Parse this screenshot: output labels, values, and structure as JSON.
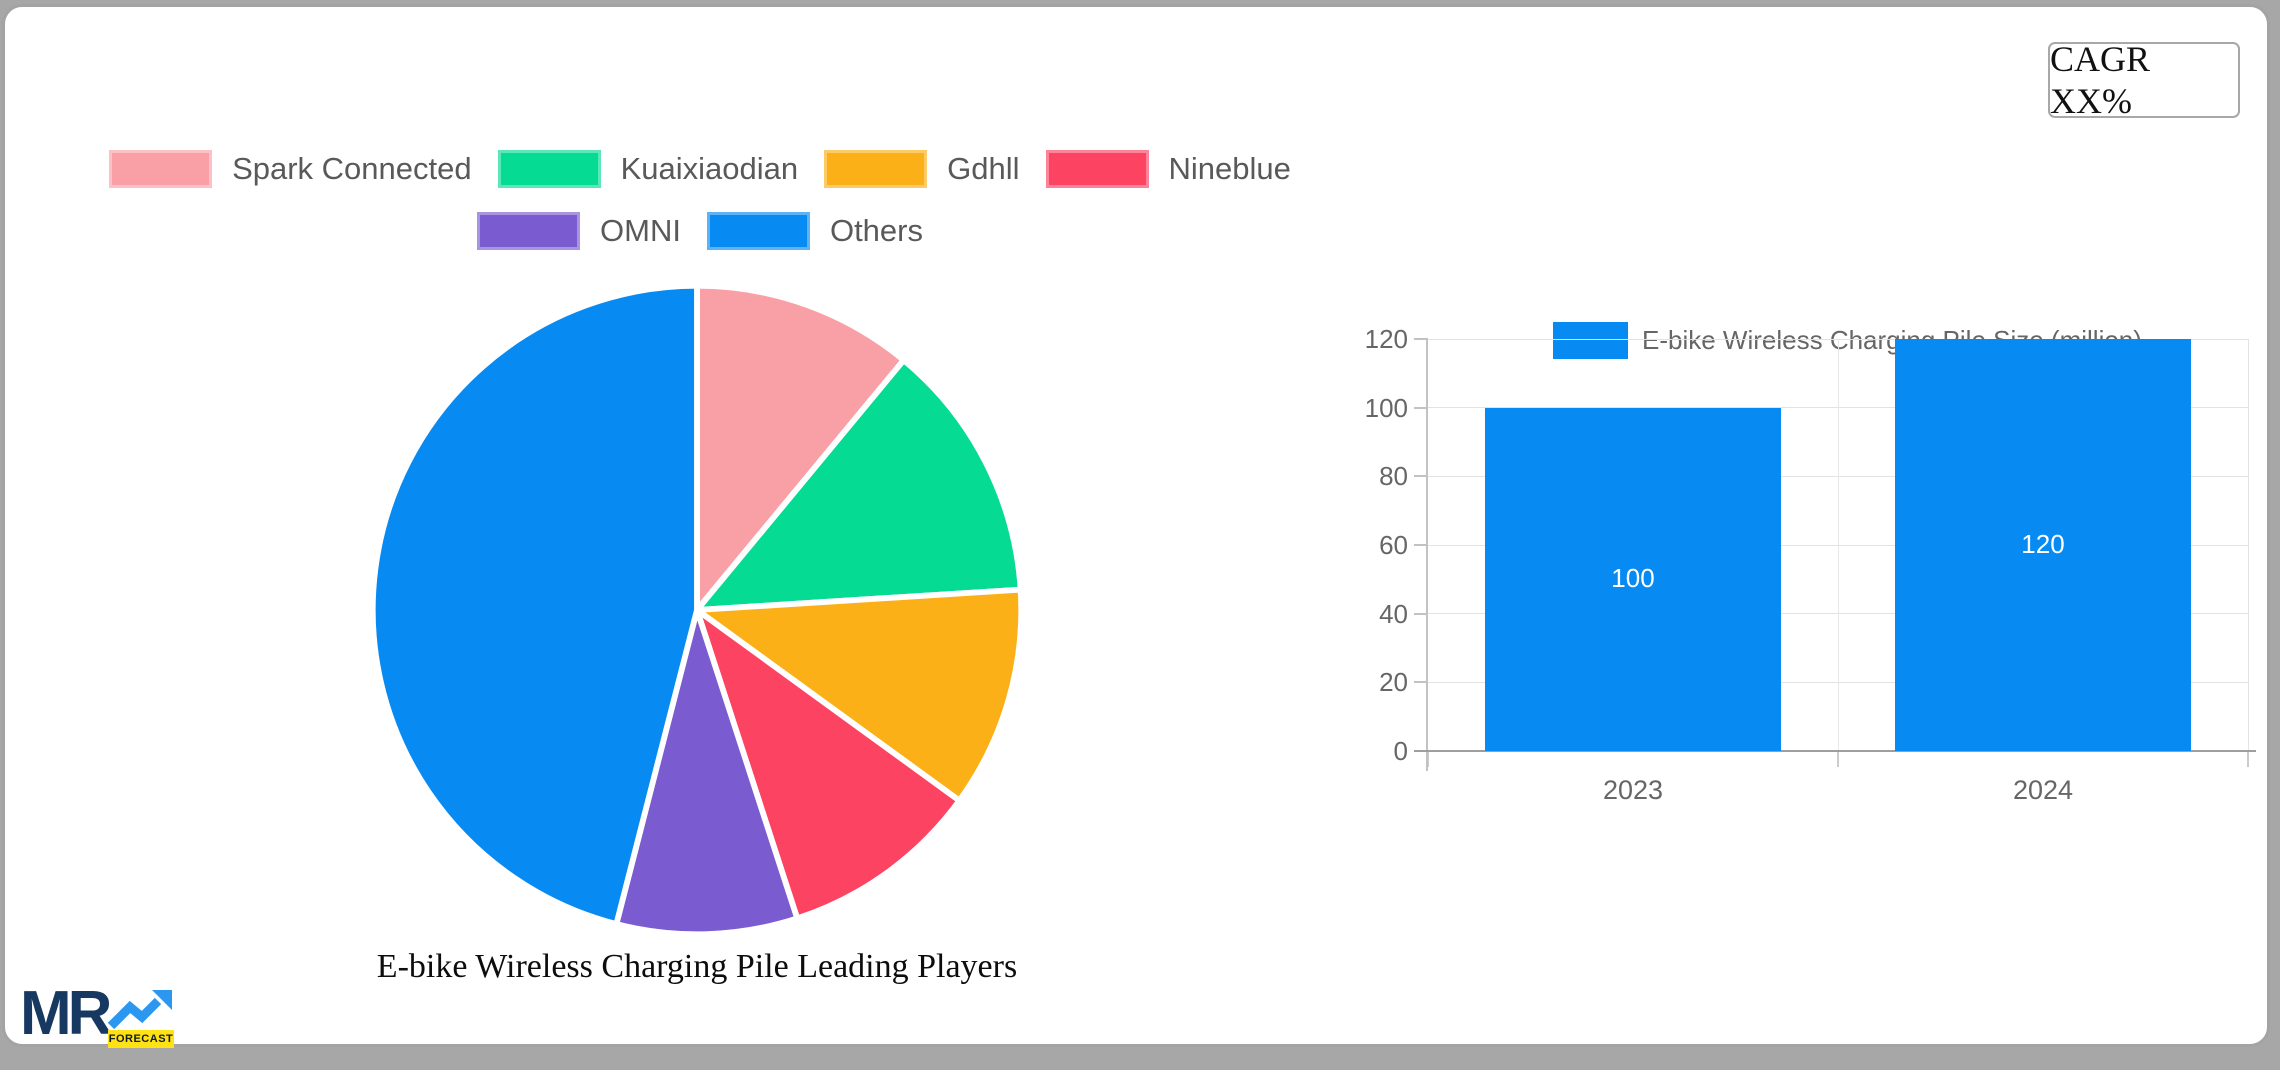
{
  "header": {
    "cagr_label": "CAGR XX%"
  },
  "chart_data": [
    {
      "type": "pie",
      "title": "E-bike Wireless Charging Pile Leading Players",
      "labels": [
        "Spark Connected",
        "Kuaixiaodian",
        "Gdhll",
        "Nineblue",
        "OMNI",
        "Others"
      ],
      "values": [
        11,
        13,
        11,
        10,
        9,
        46
      ],
      "unit": "percent share (estimated from slice angles)",
      "colors": [
        "#f9a0a6",
        "#06db93",
        "#fbb017",
        "#fc4362",
        "#7a5cd0",
        "#078bf2"
      ],
      "legend_position": "top",
      "start_angle": "12 o'clock, clockwise"
    },
    {
      "type": "bar",
      "series_label": "E-bike Wireless Charging Pile Size (million)",
      "categories": [
        "2023",
        "2024"
      ],
      "values": [
        100,
        120
      ],
      "bar_labels": [
        "100",
        "120"
      ],
      "bar_color": "#078bf2",
      "ylim": [
        0,
        120
      ],
      "y_ticks": [
        0,
        20,
        40,
        60,
        80,
        100,
        120
      ],
      "grid": true,
      "legend_position": "top"
    }
  ],
  "logo": {
    "mr": "MR",
    "forecast": "FORECAST"
  }
}
